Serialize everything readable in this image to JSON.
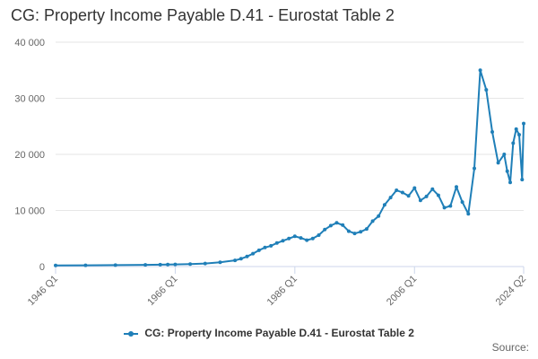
{
  "title": "CG: Property Income Payable D.41 - Eurostat Table 2",
  "source_label": "Source:",
  "colors": {
    "series": "#1f7fb8",
    "grid": "#e6e6e6",
    "axis": "#ccd6eb"
  },
  "chart_data": {
    "type": "line",
    "title": "CG: Property Income Payable D.41 - Eurostat Table 2",
    "xlabel": "",
    "ylabel": "",
    "x_tick_labels": [
      "1946 Q1",
      "1966 Q1",
      "1986 Q1",
      "2006 Q1",
      "2024 Q2"
    ],
    "x_tick_quarter_index": [
      0,
      80,
      160,
      240,
      313
    ],
    "y_ticks": [
      0,
      10000,
      20000,
      30000,
      40000
    ],
    "y_tick_labels": [
      "0",
      "10 000",
      "20 000",
      "30 000",
      "40 000"
    ],
    "ylim": [
      0,
      40000
    ],
    "grid": true,
    "legend": "bottom-center",
    "series": [
      {
        "name": "CG: Property Income Payable D.41 - Eurostat Table 2",
        "x_quarter_index": [
          0,
          20,
          40,
          60,
          70,
          75,
          80,
          90,
          100,
          110,
          120,
          124,
          128,
          132,
          136,
          140,
          144,
          148,
          152,
          156,
          160,
          164,
          168,
          172,
          176,
          180,
          184,
          188,
          192,
          196,
          200,
          204,
          208,
          212,
          216,
          220,
          224,
          228,
          232,
          236,
          240,
          244,
          248,
          252,
          256,
          260,
          264,
          268,
          272,
          276,
          280,
          284,
          288,
          292,
          296,
          300,
          302,
          304,
          306,
          308,
          310,
          312,
          313
        ],
        "values": [
          200,
          220,
          260,
          300,
          330,
          350,
          380,
          450,
          550,
          750,
          1100,
          1400,
          1800,
          2300,
          2900,
          3400,
          3700,
          4200,
          4600,
          5000,
          5400,
          5100,
          4700,
          5000,
          5600,
          6600,
          7300,
          7800,
          7400,
          6300,
          5900,
          6200,
          6700,
          8100,
          9000,
          11000,
          12300,
          13600,
          13200,
          12600,
          14000,
          11800,
          12500,
          13800,
          12700,
          10500,
          10800,
          14200,
          11500,
          9400,
          17500,
          35000,
          31500,
          24000,
          18500,
          20000,
          17000,
          15000,
          22000,
          24500,
          23500,
          15500,
          25500
        ]
      }
    ]
  }
}
